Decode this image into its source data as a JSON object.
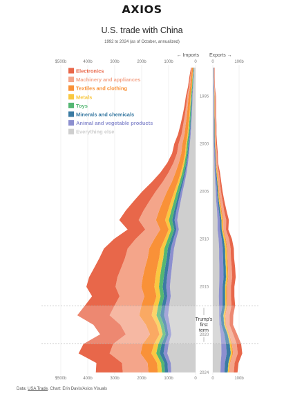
{
  "header": {
    "logo": "AXIOS",
    "title": "U.S. trade with China",
    "subtitle": "1992 to 2024 (as of October, annualized)"
  },
  "footer": {
    "data_label": "Data: ",
    "source_link": "USA Trade",
    "credit": ". Chart: Erin Davis/Axios Visuals"
  },
  "chart_data": {
    "type": "area",
    "title": "U.S. trade with China",
    "subtitle": "1992 to 2024 (as of October, annualized)",
    "orientation": "vertical-time-axis",
    "imports_label": "← Imports",
    "exports_label": "Exports →",
    "import_ticks": [
      "$500b",
      "400b",
      "300b",
      "200b",
      "100b",
      "0"
    ],
    "export_ticks": [
      "0",
      "100b"
    ],
    "year_labels": [
      "1995",
      "2000",
      "2005",
      "2010",
      "2015",
      "2020",
      "2024"
    ],
    "annotation": "Trump's first term",
    "annotation_years": [
      2017,
      2021
    ],
    "categories": [
      "Electronics",
      "Machinery and appliances",
      "Textiles and clothing",
      "Metals",
      "Toys",
      "Minerals and chemicals",
      "Animal and vegetable products",
      "Everything else"
    ],
    "colors": {
      "Electronics": "#e8674a",
      "Machinery and appliances": "#f4a58a",
      "Textiles and clothing": "#f99138",
      "Metals": "#f9c841",
      "Toys": "#54b773",
      "Minerals and chemicals": "#3b7ba3",
      "Animal and vegetable products": "#8c8fcf",
      "Everything else": "#cfcfcf"
    },
    "years": [
      1992,
      1993,
      1994,
      1995,
      1996,
      1997,
      1998,
      1999,
      2000,
      2001,
      2002,
      2003,
      2004,
      2005,
      2006,
      2007,
      2008,
      2009,
      2010,
      2011,
      2012,
      2013,
      2014,
      2015,
      2016,
      2017,
      2018,
      2019,
      2020,
      2021,
      2022,
      2023,
      2024
    ],
    "imports": [
      {
        "name": "Everything else",
        "values": [
          5,
          7,
          9,
          11,
          12,
          14,
          16,
          18,
          21,
          24,
          28,
          33,
          40,
          48,
          55,
          62,
          68,
          62,
          72,
          80,
          84,
          88,
          92,
          95,
          92,
          98,
          102,
          95,
          90,
          100,
          105,
          92,
          90
        ]
      },
      {
        "name": "Animal and vegetable products",
        "values": [
          1,
          1,
          1,
          2,
          2,
          2,
          2,
          3,
          3,
          3,
          4,
          5,
          6,
          7,
          8,
          9,
          10,
          9,
          10,
          12,
          12,
          13,
          14,
          14,
          13,
          14,
          15,
          12,
          11,
          13,
          14,
          12,
          12
        ]
      },
      {
        "name": "Minerals and chemicals",
        "values": [
          1,
          1,
          1,
          1,
          2,
          2,
          2,
          2,
          3,
          3,
          3,
          4,
          5,
          6,
          7,
          8,
          9,
          8,
          9,
          11,
          11,
          12,
          12,
          13,
          12,
          13,
          14,
          11,
          10,
          13,
          14,
          12,
          12
        ]
      },
      {
        "name": "Toys",
        "values": [
          1,
          2,
          2,
          3,
          3,
          3,
          4,
          4,
          5,
          5,
          6,
          7,
          8,
          9,
          10,
          11,
          12,
          11,
          12,
          13,
          13,
          14,
          14,
          14,
          13,
          14,
          14,
          12,
          11,
          12,
          13,
          12,
          11
        ]
      },
      {
        "name": "Metals",
        "values": [
          1,
          1,
          1,
          2,
          2,
          2,
          3,
          3,
          4,
          4,
          5,
          6,
          7,
          9,
          11,
          12,
          14,
          10,
          12,
          14,
          15,
          16,
          17,
          17,
          15,
          17,
          18,
          14,
          12,
          16,
          18,
          15,
          15
        ]
      },
      {
        "name": "Textiles and clothing",
        "values": [
          4,
          5,
          6,
          7,
          8,
          9,
          10,
          11,
          13,
          14,
          16,
          19,
          22,
          27,
          30,
          33,
          34,
          31,
          38,
          42,
          43,
          45,
          47,
          48,
          45,
          45,
          46,
          40,
          35,
          42,
          40,
          35,
          35
        ]
      },
      {
        "name": "Machinery and appliances",
        "values": [
          2,
          3,
          4,
          5,
          6,
          8,
          9,
          11,
          14,
          16,
          20,
          26,
          34,
          42,
          50,
          58,
          64,
          56,
          70,
          80,
          84,
          88,
          94,
          96,
          92,
          100,
          110,
          95,
          90,
          110,
          115,
          95,
          95
        ]
      },
      {
        "name": "Electronics",
        "values": [
          2,
          3,
          4,
          5,
          6,
          8,
          10,
          13,
          16,
          18,
          23,
          30,
          40,
          50,
          58,
          66,
          72,
          65,
          80,
          88,
          95,
          100,
          105,
          108,
          102,
          110,
          120,
          100,
          95,
          110,
          115,
          95,
          100
        ]
      }
    ],
    "exports": [
      {
        "name": "Everything else",
        "values": [
          2,
          2,
          2,
          3,
          3,
          3,
          3,
          3,
          4,
          5,
          6,
          7,
          9,
          11,
          13,
          16,
          18,
          18,
          22,
          24,
          24,
          25,
          25,
          24,
          23,
          24,
          24,
          25,
          30,
          32,
          33,
          30,
          29
        ]
      },
      {
        "name": "Animal and vegetable products",
        "values": [
          1,
          1,
          2,
          2,
          2,
          2,
          2,
          2,
          2,
          3,
          3,
          4,
          5,
          5,
          6,
          7,
          9,
          10,
          12,
          14,
          15,
          15,
          16,
          13,
          14,
          13,
          6,
          8,
          14,
          18,
          20,
          16,
          15
        ]
      },
      {
        "name": "Minerals and chemicals",
        "values": [
          1,
          1,
          1,
          1,
          1,
          1,
          2,
          2,
          2,
          2,
          2,
          3,
          3,
          4,
          4,
          5,
          6,
          6,
          7,
          8,
          8,
          9,
          9,
          9,
          9,
          10,
          10,
          10,
          12,
          14,
          15,
          13,
          12
        ]
      },
      {
        "name": "Toys",
        "values": [
          0,
          0,
          0,
          0,
          0,
          0,
          0,
          0,
          0,
          0,
          0,
          0,
          0,
          0,
          0,
          0,
          0,
          0,
          1,
          1,
          1,
          1,
          1,
          1,
          1,
          1,
          1,
          1,
          1,
          1,
          1,
          1,
          1
        ]
      },
      {
        "name": "Metals",
        "values": [
          0,
          0,
          0,
          1,
          1,
          1,
          1,
          1,
          1,
          1,
          1,
          2,
          2,
          2,
          3,
          3,
          4,
          4,
          5,
          5,
          5,
          5,
          5,
          4,
          4,
          4,
          4,
          4,
          4,
          5,
          5,
          4,
          4
        ]
      },
      {
        "name": "Textiles and clothing",
        "values": [
          0,
          0,
          0,
          1,
          1,
          1,
          1,
          1,
          1,
          1,
          1,
          2,
          2,
          2,
          3,
          3,
          3,
          2,
          3,
          3,
          3,
          3,
          3,
          3,
          3,
          3,
          3,
          2,
          2,
          3,
          3,
          2,
          2
        ]
      },
      {
        "name": "Machinery and appliances",
        "values": [
          2,
          2,
          2,
          2,
          3,
          3,
          3,
          3,
          3,
          4,
          4,
          5,
          6,
          7,
          8,
          9,
          11,
          10,
          12,
          13,
          13,
          14,
          15,
          15,
          15,
          16,
          16,
          14,
          15,
          18,
          18,
          17,
          17
        ]
      },
      {
        "name": "Electronics",
        "values": [
          1,
          1,
          1,
          2,
          2,
          2,
          2,
          2,
          3,
          3,
          3,
          4,
          5,
          6,
          7,
          9,
          10,
          9,
          11,
          12,
          12,
          13,
          13,
          13,
          13,
          14,
          14,
          13,
          15,
          17,
          17,
          15,
          14
        ]
      }
    ],
    "import_xlim": [
      0,
      500
    ],
    "export_xlim": [
      0,
      150
    ]
  }
}
